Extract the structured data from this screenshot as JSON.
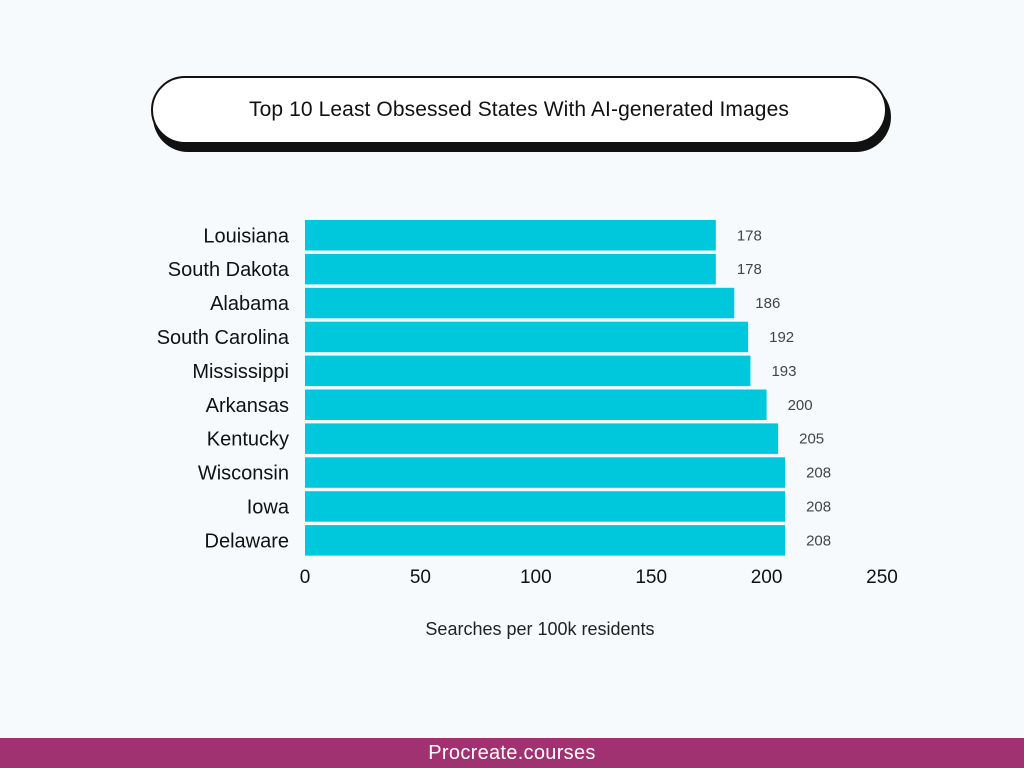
{
  "chart_data": {
    "type": "bar",
    "orientation": "horizontal",
    "title": "Top 10 Least Obsessed States With AI-generated Images",
    "categories": [
      "Louisiana",
      "South Dakota",
      "Alabama",
      "South Carolina",
      "Mississippi",
      "Arkansas",
      "Kentucky",
      "Wisconsin",
      "Iowa",
      "Delaware"
    ],
    "values": [
      178,
      178,
      186,
      192,
      193,
      200,
      205,
      208,
      208,
      208
    ],
    "xlabel": "Searches per 100k residents",
    "ylabel": "",
    "xlim": [
      0,
      250
    ],
    "xticks": [
      0,
      50,
      100,
      150,
      200,
      250
    ],
    "grid": false,
    "bar_color": "#00c8dc"
  },
  "footer": {
    "text": "Procreate.courses"
  },
  "colors": {
    "background": "#f6fafc",
    "footer": "#a03272",
    "bar": "#00c8dc"
  }
}
